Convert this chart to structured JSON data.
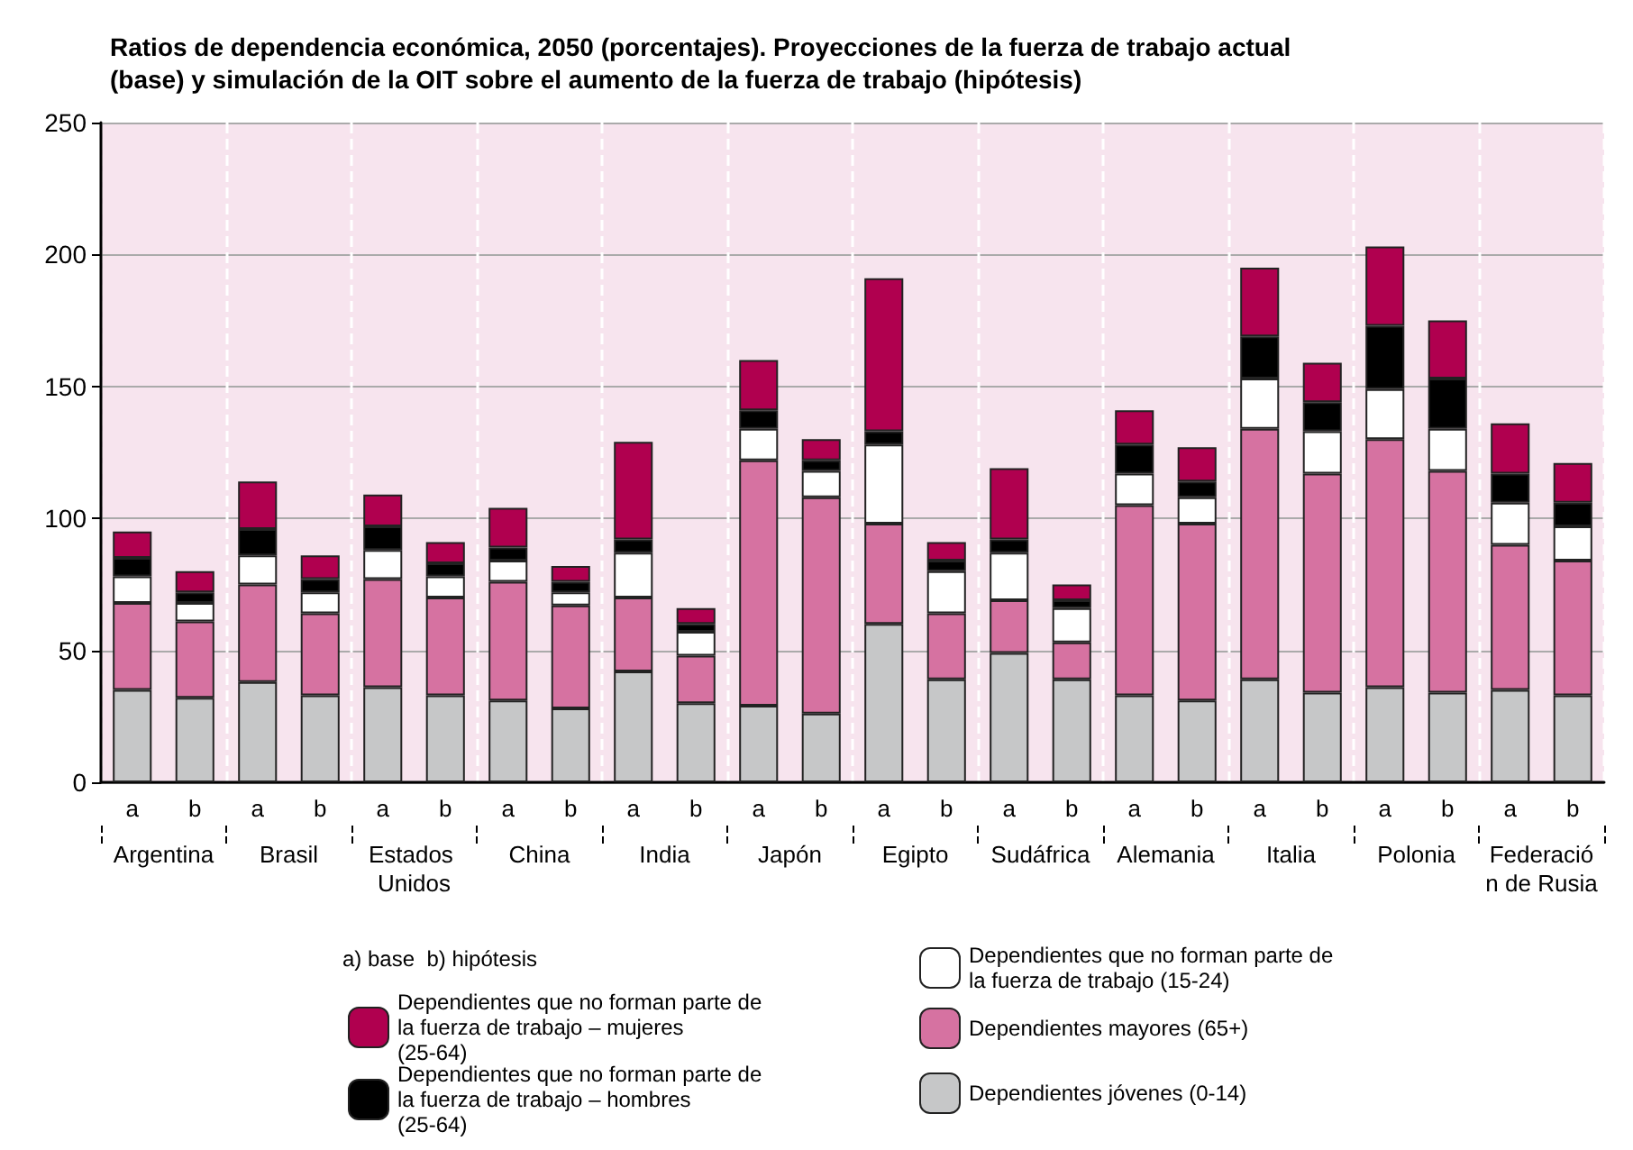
{
  "chart_data": {
    "type": "bar",
    "stacked": true,
    "title": "Ratios de dependencia económica, 2050 (porcentajes). Proyecciones de la fuerza de trabajo actual\n(base) y simulación de la OIT sobre el aumento de la fuerza de trabajo (hipótesis)",
    "categories": [
      "a",
      "b",
      "a",
      "b",
      "a",
      "b",
      "a",
      "b",
      "a",
      "b",
      "a",
      "b",
      "a",
      "b",
      "a",
      "b",
      "a",
      "b",
      "a",
      "b",
      "a",
      "b",
      "a",
      "b"
    ],
    "annotations": [
      "Argentina",
      "Brasil",
      "Estados Unidos",
      "China",
      "India",
      "Japón",
      "Egipto",
      "Sudáfrica",
      "Alemania",
      "Italia",
      "Polonia",
      "Federación de Rusia"
    ],
    "legend_title": "a) base  b) hipótesis",
    "series": [
      {
        "name": "Dependientes jóvenes (0-14)",
        "color": "#c6c7c8",
        "values": [
          35,
          32,
          38,
          33,
          36,
          33,
          31,
          28,
          42,
          30,
          29,
          26,
          60,
          39,
          49,
          39,
          33,
          31,
          39,
          34,
          36,
          34,
          35,
          33
        ]
      },
      {
        "name": "Dependientes mayores (65+)",
        "color": "#d672a1",
        "values": [
          33,
          29,
          37,
          31,
          41,
          37,
          45,
          39,
          28,
          18,
          93,
          82,
          38,
          25,
          20,
          14,
          72,
          67,
          95,
          83,
          94,
          84,
          55,
          51
        ]
      },
      {
        "name": "Dependientes que no forman parte de la fuerza de trabajo (15-24)",
        "color": "#ffffff",
        "values": [
          10,
          7,
          11,
          8,
          11,
          8,
          8,
          5,
          17,
          9,
          12,
          10,
          30,
          16,
          18,
          13,
          12,
          10,
          19,
          16,
          19,
          16,
          16,
          13
        ]
      },
      {
        "name": "Dependientes que no forman parte de la fuerza de trabajo – hombres (25-64)",
        "color": "#000000",
        "values": [
          7,
          4,
          10,
          5,
          9,
          5,
          5,
          4,
          5,
          3,
          7,
          4,
          5,
          4,
          5,
          3,
          11,
          6,
          16,
          11,
          24,
          19,
          11,
          9
        ]
      },
      {
        "name": "Dependientes que no forman parte de la fuerza de trabajo – mujeres (25-64)",
        "color": "#b0004f",
        "values": [
          10,
          8,
          18,
          9,
          12,
          8,
          15,
          6,
          37,
          6,
          19,
          8,
          58,
          7,
          27,
          6,
          13,
          13,
          26,
          15,
          30,
          22,
          19,
          15
        ]
      }
    ],
    "ylim": [
      0,
      250
    ],
    "yticks": [
      0,
      50,
      100,
      150,
      200,
      250
    ],
    "grid": "y",
    "legend": "bottom"
  }
}
